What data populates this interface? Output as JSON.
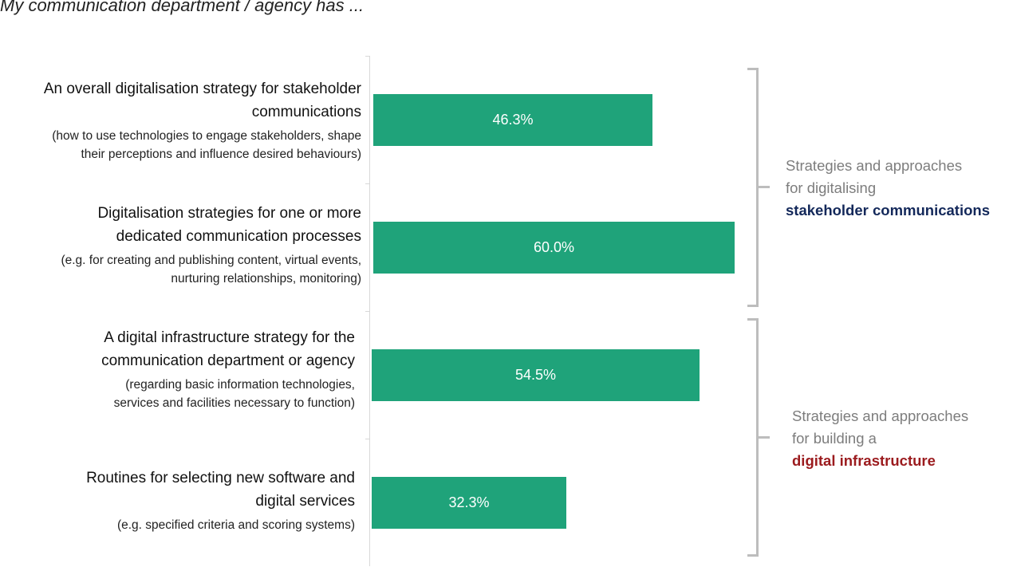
{
  "title": "My communication department / agency has ...",
  "chart_data": {
    "type": "bar",
    "orientation": "horizontal",
    "title": "My communication department / agency has ...",
    "categories": [
      {
        "main": "An overall digitalisation strategy for stakeholder communications",
        "main_lines": [
          "An overall digitalisation strategy for stakeholder",
          "communications"
        ],
        "sub_lines": [
          "(how to use technologies to engage stakeholders, shape",
          "their perceptions and influence desired behaviours)"
        ]
      },
      {
        "main": "Digitalisation strategies for one or more dedicated communication processes",
        "main_lines": [
          "Digitalisation strategies for one or more",
          "dedicated communication processes"
        ],
        "sub_lines": [
          "(e.g. for creating and publishing content, virtual events,",
          "nurturing relationships, monitoring)"
        ]
      },
      {
        "main": "A digital infrastructure strategy for the communication department or agency",
        "main_lines": [
          "A digital infrastructure strategy for the",
          "communication department or agency"
        ],
        "sub_lines": [
          "(regarding basic information technologies,",
          "services and facilities necessary to function)"
        ]
      },
      {
        "main": "Routines for selecting new software and digital services",
        "main_lines": [
          "Routines for selecting new software and",
          "digital services"
        ],
        "sub_lines": [
          "(e.g. specified criteria and scoring systems)"
        ]
      }
    ],
    "values": [
      46.3,
      60.0,
      54.5,
      32.3
    ],
    "value_labels": [
      "46.3%",
      "60.0%",
      "54.5%",
      "32.3%"
    ],
    "unit": "%",
    "xlim": [
      0,
      100
    ],
    "bar_color": "#1fa37a",
    "grid": false,
    "groups": [
      {
        "lines": [
          "Strategies and approaches",
          "for digitalising"
        ],
        "highlight": "stakeholder communications",
        "highlight_color": "#13285a",
        "members": [
          0,
          1
        ]
      },
      {
        "lines": [
          "Strategies and approaches",
          "for building a"
        ],
        "highlight": "digital infrastructure",
        "highlight_color": "#9b1b1e",
        "members": [
          2,
          3
        ]
      }
    ]
  }
}
